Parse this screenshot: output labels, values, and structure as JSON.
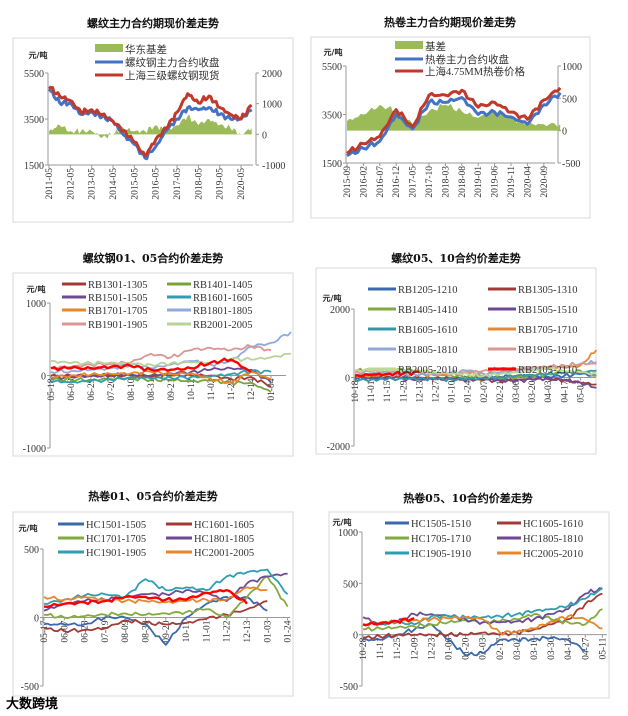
{
  "watermark": "大数跨境",
  "chart_data": [
    {
      "type": "line",
      "title": "螺纹主力合约期现价差走势",
      "unit": "元/吨",
      "x_labels": [
        "2011-05",
        "2012-05",
        "2013-05",
        "2014-05",
        "2015-05",
        "2016-05",
        "2017-05",
        "2018-05",
        "2019-05",
        "2020-05"
      ],
      "x_step": "half-year",
      "ylim": [
        1500,
        5500
      ],
      "yticks": [
        1500,
        3500,
        5500
      ],
      "y2lim": [
        -1000,
        2000
      ],
      "y2ticks": [
        -1000,
        0,
        1000,
        2000
      ],
      "series": [
        {
          "name": "华东基差",
          "kind": "area",
          "axis": "right",
          "color": "#9bbb59",
          "values": [
            100,
            300,
            100,
            100,
            100,
            -100,
            0,
            200,
            100,
            100,
            300,
            100,
            300,
            600,
            300,
            500,
            300,
            200,
            0,
            200
          ]
        },
        {
          "name": "螺纹钢主力合约收盘",
          "kind": "line",
          "axis": "left",
          "color": "#4472c4",
          "values": [
            4800,
            4200,
            4200,
            3700,
            3800,
            3600,
            3400,
            2800,
            2400,
            1800,
            2300,
            3000,
            3500,
            4000,
            3900,
            4000,
            3700,
            3500,
            3500,
            3900
          ]
        },
        {
          "name": "上海三级螺纹钢现货",
          "kind": "line",
          "axis": "left",
          "color": "#c0392b",
          "values": [
            4900,
            4500,
            4300,
            3800,
            3900,
            3700,
            3400,
            3000,
            2500,
            1900,
            2600,
            3100,
            3800,
            4600,
            4200,
            4500,
            4000,
            3700,
            3500,
            4100
          ]
        }
      ]
    },
    {
      "type": "line",
      "title": "热卷主力合约期现价差走势",
      "unit": "元/吨",
      "x_labels": [
        "2015-09",
        "2016-02",
        "2016-07",
        "2016-12",
        "2017-05",
        "2017-10",
        "2018-03",
        "2018-08",
        "2019-01",
        "2019-06",
        "2019-11",
        "2020-04",
        "2020-09"
      ],
      "ylim": [
        1500,
        5500
      ],
      "yticks": [
        1500,
        3500,
        5500
      ],
      "y2lim": [
        -500,
        1000
      ],
      "y2ticks": [
        -500,
        0,
        500,
        1000
      ],
      "series": [
        {
          "name": "基差",
          "kind": "area",
          "axis": "right",
          "color": "#9bbb59",
          "values": [
            150,
            250,
            400,
            300,
            100,
            300,
            400,
            300,
            200,
            300,
            200,
            100,
            100,
            100
          ]
        },
        {
          "name": "热卷主力合约收盘",
          "kind": "line",
          "axis": "left",
          "color": "#4472c4",
          "values": [
            1800,
            2100,
            2400,
            3500,
            2900,
            4000,
            4000,
            4200,
            3500,
            3600,
            3400,
            3100,
            3900,
            4400
          ]
        },
        {
          "name": "上海4.75MM热卷价格",
          "kind": "line",
          "axis": "left",
          "color": "#c0392b",
          "values": [
            1900,
            2300,
            2600,
            3700,
            3000,
            4300,
            4300,
            4500,
            3800,
            4000,
            3600,
            3300,
            4100,
            4600
          ]
        }
      ]
    },
    {
      "type": "line",
      "title": "螺纹钢01、05合约价差走势",
      "unit": "元/吨",
      "x_labels": [
        "05-18",
        "06-08",
        "06-29",
        "07-20",
        "08-10",
        "08-31",
        "09-21",
        "10-12",
        "11-02",
        "11-23",
        "12-14",
        "01-04"
      ],
      "ylim": [
        -1000,
        1000
      ],
      "yticks": [
        -1000,
        0,
        1000
      ],
      "series": [
        {
          "name": "RB1301-1305",
          "color": "#a23b36",
          "values": [
            0,
            0,
            0,
            0,
            0,
            -20,
            0,
            0,
            0,
            -50,
            -20,
            -150
          ]
        },
        {
          "name": "RB1401-1405",
          "color": "#77a33b",
          "values": [
            -50,
            -60,
            -60,
            -50,
            -40,
            -60,
            -60,
            -80,
            -70,
            -100,
            -100,
            -230
          ]
        },
        {
          "name": "RB1501-1505",
          "color": "#6e4a92",
          "values": [
            -30,
            -20,
            -10,
            0,
            20,
            0,
            30,
            50,
            80,
            100,
            80,
            -100
          ]
        },
        {
          "name": "RB1601-1605",
          "color": "#2e9fb3",
          "values": [
            -80,
            -90,
            -80,
            -60,
            -20,
            -40,
            -30,
            -20,
            -10,
            20,
            60,
            50
          ]
        },
        {
          "name": "RB1701-1705",
          "color": "#e9862a",
          "values": [
            -20,
            0,
            10,
            20,
            30,
            50,
            20,
            30,
            -50,
            -100,
            50,
            -50
          ]
        },
        {
          "name": "RB1801-1805",
          "color": "#8faadc",
          "values": [
            50,
            60,
            80,
            100,
            150,
            100,
            150,
            200,
            150,
            200,
            400,
            450,
            600
          ]
        },
        {
          "name": "RB1901-1905",
          "color": "#d99694",
          "values": [
            100,
            120,
            150,
            160,
            180,
            300,
            250,
            350,
            380,
            350,
            400,
            350
          ]
        },
        {
          "name": "RB2001-2005",
          "color": "#b8d39a",
          "values": [
            200,
            170,
            170,
            180,
            160,
            150,
            170,
            180,
            180,
            230,
            220,
            250,
            300
          ]
        },
        {
          "color": "#ff0000",
          "bold": true,
          "values": [
            100,
            100,
            100,
            120,
            130,
            80,
            80,
            100,
            180,
            220,
            50
          ]
        }
      ]
    },
    {
      "type": "line",
      "title": "螺纹05、10合约价差走势",
      "unit": "元/吨",
      "x_labels": [
        "10-18",
        "11-01",
        "11-15",
        "11-29",
        "12-13",
        "12-27",
        "01-10",
        "01-24",
        "02-07",
        "02-21",
        "03-06",
        "03-20",
        "04-03",
        "04-17",
        "05-01"
      ],
      "ylim": [
        -2000,
        2000
      ],
      "yticks": [
        -2000,
        0,
        2000
      ],
      "series": [
        {
          "name": "RB1205-1210",
          "color": "#3c69ad",
          "values": [
            -50,
            -30,
            0,
            20,
            0,
            -20,
            -30,
            -10,
            0,
            20,
            50,
            30,
            20,
            50,
            100,
            50
          ]
        },
        {
          "name": "RB1305-1310",
          "color": "#a33a36",
          "values": [
            50,
            30,
            20,
            0,
            -20,
            -30,
            -50,
            -60,
            -80,
            -100,
            -60,
            -50,
            -30,
            -80,
            -150,
            -200
          ]
        },
        {
          "name": "RB1405-1410",
          "color": "#83aa3e",
          "values": [
            200,
            220,
            250,
            230,
            200,
            100,
            50,
            30,
            50,
            -20,
            0,
            50,
            100,
            150,
            200,
            50
          ]
        },
        {
          "name": "RB1505-1510",
          "color": "#6b4a91",
          "values": [
            0,
            -20,
            -30,
            -50,
            -60,
            -40,
            -50,
            -60,
            -50,
            -80,
            -100,
            -60,
            -40,
            -80,
            -150,
            -300
          ]
        },
        {
          "name": "RB1605-1610",
          "color": "#3397a8",
          "values": [
            -80,
            -60,
            -50,
            -40,
            -30,
            -50,
            -60,
            -40,
            -20,
            0,
            50,
            80,
            100,
            120,
            150,
            200
          ]
        },
        {
          "name": "RB1705-1710",
          "color": "#e58a30",
          "values": [
            50,
            60,
            80,
            100,
            80,
            60,
            100,
            120,
            100,
            150,
            200,
            250,
            300,
            280,
            350,
            800
          ]
        },
        {
          "name": "RB1805-1810",
          "color": "#93a9d4",
          "values": [
            100,
            120,
            150,
            100,
            80,
            100,
            150,
            200,
            100,
            150,
            200,
            250,
            300,
            350,
            400,
            450
          ]
        },
        {
          "name": "RB1905-1910",
          "color": "#d89996",
          "values": [
            150,
            180,
            200,
            180,
            150,
            120,
            100,
            150,
            200,
            250,
            250,
            300,
            300,
            350,
            400,
            400
          ]
        },
        {
          "name": "RB2005-2010",
          "color": "#c0d79b",
          "values": [
            200,
            210,
            220,
            200,
            180,
            150,
            120,
            100,
            50,
            100,
            150,
            200,
            250,
            200,
            150,
            100
          ]
        },
        {
          "name": "RB2105-2110",
          "color": "#ff0000",
          "bold": true,
          "values": [
            50,
            80,
            100,
            120,
            150
          ]
        }
      ]
    },
    {
      "type": "line",
      "title": "热卷01、05合约价差走势",
      "unit": "元/吨",
      "x_labels": [
        "05-17",
        "06-07",
        "06-28",
        "07-19",
        "08-09",
        "08-30",
        "09-20",
        "10-11",
        "11-01",
        "11-22",
        "12-13",
        "01-03",
        "01-24"
      ],
      "ylim": [
        -500,
        500
      ],
      "yticks": [
        -500,
        0,
        500
      ],
      "series": [
        {
          "name": "HC1501-1505",
          "color": "#3c69ad",
          "values": [
            -50,
            -50,
            -50,
            0,
            0,
            -50,
            -200,
            0,
            100,
            150,
            150,
            50
          ]
        },
        {
          "name": "HC1601-1605",
          "color": "#a23b36",
          "values": [
            -80,
            -100,
            -90,
            -80,
            -20,
            -40,
            -50,
            -40,
            -10,
            20,
            60,
            120
          ]
        },
        {
          "name": "HC1701-1705",
          "color": "#83aa3e",
          "values": [
            20,
            0,
            10,
            20,
            30,
            20,
            30,
            40,
            60,
            0,
            150,
            300,
            80
          ]
        },
        {
          "name": "HC1801-1805",
          "color": "#6e4a92",
          "values": [
            50,
            100,
            120,
            130,
            150,
            170,
            170,
            200,
            180,
            120,
            250,
            300,
            320
          ]
        },
        {
          "name": "HC1901-1905",
          "color": "#2e9fb3",
          "values": [
            100,
            130,
            160,
            170,
            150,
            280,
            200,
            220,
            200,
            300,
            330,
            350,
            170
          ]
        },
        {
          "name": "HC2001-2005",
          "color": "#e9862a",
          "values": [
            150,
            130,
            150,
            130,
            120,
            120,
            110,
            120,
            130,
            130,
            220,
            200
          ]
        },
        {
          "color": "#ff0000",
          "bold": true,
          "values": [
            80,
            100,
            110,
            120,
            150,
            150,
            130,
            130,
            180,
            200,
            100
          ]
        }
      ]
    },
    {
      "type": "line",
      "title": "热卷05、10合约价差走势",
      "unit": "元/吨",
      "x_labels": [
        "10-28",
        "11-11",
        "11-25",
        "12-09",
        "12-23",
        "01-06",
        "01-20",
        "02-03",
        "02-17",
        "03-02",
        "03-16",
        "03-30",
        "04-13",
        "04-27",
        "05-11"
      ],
      "ylim": [
        -500,
        1000
      ],
      "yticks": [
        -500,
        0,
        500,
        1000
      ],
      "series": [
        {
          "name": "HC1505-1510",
          "color": "#3c69ad",
          "values": [
            -50,
            -50,
            0,
            50,
            100,
            -50,
            -200,
            -180,
            -50,
            -50,
            -40,
            -30,
            -50,
            -150
          ]
        },
        {
          "name": "HC1605-1610",
          "color": "#a23b36",
          "values": [
            -30,
            -20,
            0,
            0,
            0,
            0,
            0,
            20,
            0,
            20,
            50,
            100,
            150,
            300,
            400
          ]
        },
        {
          "name": "HC1705-1710",
          "color": "#83aa3e",
          "values": [
            50,
            60,
            70,
            80,
            100,
            120,
            140,
            120,
            130,
            150,
            200,
            150,
            120,
            100,
            250
          ]
        },
        {
          "name": "HC1805-1810",
          "color": "#6e4a92",
          "values": [
            170,
            100,
            120,
            200,
            200,
            180,
            150,
            120,
            120,
            130,
            150,
            200,
            250,
            400,
            450
          ]
        },
        {
          "name": "HC1905-1910",
          "color": "#2e9fb3",
          "values": [
            100,
            110,
            120,
            100,
            180,
            180,
            170,
            170,
            180,
            200,
            230,
            250,
            280,
            350,
            450
          ]
        },
        {
          "name": "HC2005-2010",
          "color": "#e9862a",
          "values": [
            100,
            120,
            130,
            140,
            150,
            160,
            170,
            150,
            20,
            30,
            60,
            130,
            180,
            150,
            60
          ]
        },
        {
          "color": "#ff0000",
          "bold": true,
          "values": [
            100,
            110,
            130,
            160
          ]
        }
      ]
    }
  ]
}
